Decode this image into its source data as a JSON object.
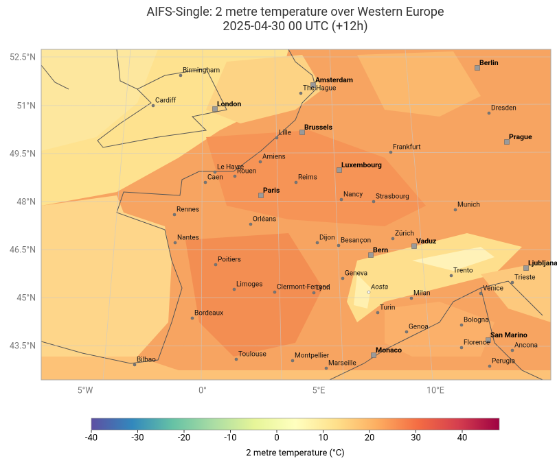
{
  "title": "AIFS-Single: 2 metre temperature over Western Europe",
  "subtitle": "2025-04-30 00 UTC (+12h)",
  "map": {
    "lat_labels": [
      "52.5°N",
      "51°N",
      "49.5°N",
      "48°N",
      "46.5°N",
      "45°N",
      "43.5°N"
    ],
    "lon_labels": [
      "5°W",
      "0°",
      "5°E",
      "10°E"
    ],
    "cities": [
      "Birmingham",
      "Cardiff",
      "London",
      "Amsterdam",
      "The Hague",
      "Berlin",
      "Dresden",
      "Brussels",
      "Lille",
      "Prague",
      "Frankfurt",
      "Le Havre",
      "Amiens",
      "Luxembourg",
      "Rouen",
      "Caen",
      "Reims",
      "Paris",
      "Nancy",
      "Strasbourg",
      "Munich",
      "Rennes",
      "Orléans",
      "Zürich",
      "Dijon",
      "Besançon",
      "Vaduz",
      "Nantes",
      "Bern",
      "Poitiers",
      "Ljubljana",
      "Geneva",
      "Trento",
      "Aosta",
      "Trieste",
      "Limoges",
      "Clermont-Ferrand",
      "Lyon",
      "Milan",
      "Venice",
      "Bordeaux",
      "Turin",
      "Bologna",
      "Genoa",
      "San Marino",
      "Florence",
      "Monaco",
      "Toulouse",
      "Montpellier",
      "Ancona",
      "Bilbao",
      "Marseille",
      "Perugia"
    ]
  },
  "colorbar": {
    "range": [
      -40,
      48
    ],
    "ticks": [
      -40,
      -30,
      -20,
      -10,
      0,
      10,
      20,
      30,
      40
    ],
    "label": "2 metre temperature (°C)"
  }
}
